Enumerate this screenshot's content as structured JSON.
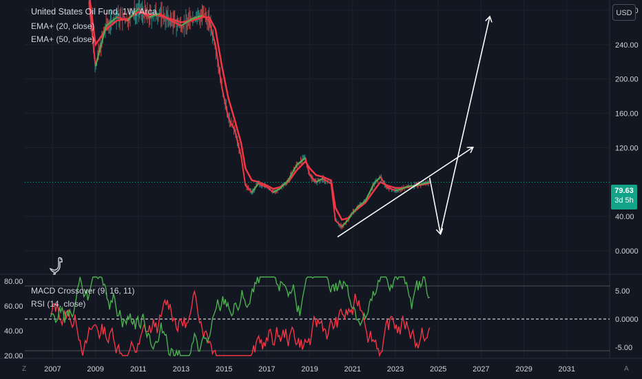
{
  "legend": {
    "title": "United States Oil Fund, 1W, Arca",
    "ema20": "EMA+ (20, close)",
    "ema50": "EMA+ (50, close)"
  },
  "oscillator_legend": {
    "macd": "MACD Crossover (9, 16, 11)",
    "rsi": "RSI (14, close)"
  },
  "currency": "USD",
  "price_badge": {
    "price": "79.63",
    "time_left": "3d 5h"
  },
  "price_axis": [
    "280.00",
    "240.00",
    "200.00",
    "160.00",
    "120.00",
    "40.00",
    "0.0000"
  ],
  "macd_axis": [
    "5.00",
    "0.0000",
    "-5.00"
  ],
  "rsi_axis": [
    "80.00",
    "60.00",
    "40.00",
    "20.00"
  ],
  "time_axis": [
    "2007",
    "2009",
    "2011",
    "2013",
    "2015",
    "2017",
    "2019",
    "2021",
    "2023",
    "2025",
    "2027",
    "2029",
    "2031"
  ],
  "corner_left": "Z",
  "corner_right": "A",
  "colors": {
    "background": "#131722",
    "ema_fast": "#4caf50",
    "ema_slow": "#f23645",
    "badge": "#13a388",
    "arrow": "#ffffff"
  },
  "chart_data": {
    "type": "line",
    "series": [
      {
        "name": "EMA+ (20, close)",
        "x": [
          2008.7,
          2009.0,
          2009.5,
          2010.0,
          2010.5,
          2011.0,
          2011.5,
          2012.0,
          2012.5,
          2013.0,
          2013.5,
          2014.0,
          2014.3,
          2014.6,
          2014.9,
          2015.2,
          2015.5,
          2015.8,
          2016.0,
          2016.3,
          2016.6,
          2017.0,
          2017.3,
          2017.6,
          2018.0,
          2018.4,
          2018.8,
          2019.0,
          2019.3,
          2019.6,
          2020.0,
          2020.2,
          2020.5,
          2020.8,
          2021.0,
          2021.3,
          2021.6,
          2022.0,
          2022.3,
          2022.6,
          2023.0,
          2023.3,
          2023.6,
          2024.0,
          2024.3,
          2024.6
        ],
        "values": [
          290,
          215,
          262,
          272,
          268,
          282,
          272,
          276,
          268,
          262,
          270,
          274,
          268,
          240,
          190,
          155,
          140,
          110,
          76,
          68,
          78,
          74,
          68,
          72,
          82,
          100,
          108,
          88,
          80,
          84,
          78,
          35,
          28,
          36,
          44,
          52,
          58,
          78,
          86,
          74,
          70,
          72,
          75,
          76,
          78,
          80
        ]
      },
      {
        "name": "EMA+ (50, close)",
        "x": [
          2008.7,
          2009.0,
          2009.5,
          2010.0,
          2010.5,
          2011.0,
          2011.5,
          2012.0,
          2012.5,
          2013.0,
          2013.5,
          2014.0,
          2014.3,
          2014.6,
          2014.9,
          2015.2,
          2015.5,
          2015.8,
          2016.0,
          2016.3,
          2016.6,
          2017.0,
          2017.3,
          2017.6,
          2018.0,
          2018.4,
          2018.8,
          2019.0,
          2019.3,
          2019.6,
          2020.0,
          2020.2,
          2020.5,
          2020.8,
          2021.0,
          2021.3,
          2021.6,
          2022.0,
          2022.3,
          2022.6,
          2023.0,
          2023.3,
          2023.6,
          2024.0,
          2024.3,
          2024.6
        ],
        "values": [
          300,
          240,
          258,
          268,
          270,
          278,
          275,
          274,
          270,
          266,
          268,
          272,
          272,
          258,
          215,
          178,
          152,
          125,
          96,
          82,
          80,
          76,
          72,
          74,
          80,
          94,
          104,
          96,
          88,
          86,
          82,
          50,
          36,
          38,
          44,
          50,
          56,
          70,
          80,
          76,
          73,
          73,
          74,
          76,
          77,
          79
        ]
      }
    ],
    "annotations": [
      {
        "type": "arrow",
        "from": [
          2020.3,
          16
        ],
        "to": [
          2026.6,
          120
        ]
      },
      {
        "type": "arrow",
        "from": [
          2024.6,
          85
        ],
        "to": [
          2025.1,
          20
        ]
      },
      {
        "type": "arrow",
        "from": [
          2025.1,
          20
        ],
        "to": [
          2027.4,
          272
        ]
      }
    ],
    "last_price": 79.63,
    "ylim": [
      -5,
      300
    ],
    "xlim": [
      2005.7,
      2033.0
    ]
  }
}
